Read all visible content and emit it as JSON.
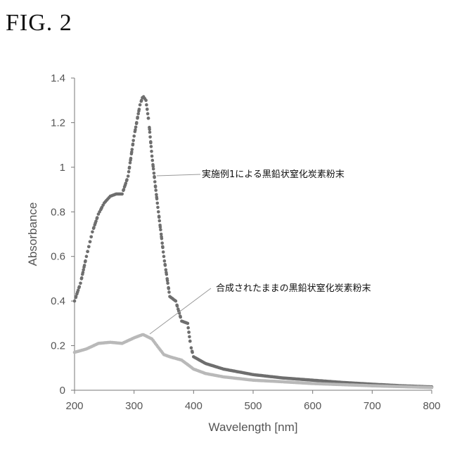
{
  "figure_title": "FIG. 2",
  "chart_data": {
    "type": "scatter",
    "xlabel": "Wavelength [nm]",
    "ylabel": "Absorbance",
    "xlim": [
      200,
      800
    ],
    "ylim": [
      0,
      1.4
    ],
    "xticks": [
      "200",
      "300",
      "400",
      "500",
      "600",
      "700",
      "800"
    ],
    "yticks": [
      "0",
      "0.2",
      "0.4",
      "0.6",
      "0.8",
      "1",
      "1.2",
      "1.4"
    ],
    "grid": false,
    "legend": "none",
    "series": [
      {
        "color": "#6e6e6e",
        "points": [
          [
            200,
            0.4
          ],
          [
            210,
            0.48
          ],
          [
            220,
            0.6
          ],
          [
            230,
            0.71
          ],
          [
            240,
            0.79
          ],
          [
            250,
            0.84
          ],
          [
            260,
            0.87
          ],
          [
            270,
            0.88
          ],
          [
            280,
            0.88
          ],
          [
            290,
            0.96
          ],
          [
            300,
            1.14
          ],
          [
            310,
            1.28
          ],
          [
            315,
            1.32
          ],
          [
            320,
            1.3
          ],
          [
            325,
            1.2
          ],
          [
            330,
            1.05
          ],
          [
            340,
            0.82
          ],
          [
            350,
            0.6
          ],
          [
            360,
            0.42
          ],
          [
            370,
            0.4
          ],
          [
            380,
            0.31
          ],
          [
            390,
            0.3
          ],
          [
            395,
            0.2
          ],
          [
            400,
            0.15
          ],
          [
            420,
            0.12
          ],
          [
            450,
            0.095
          ],
          [
            500,
            0.07
          ],
          [
            550,
            0.055
          ],
          [
            600,
            0.045
          ],
          [
            650,
            0.035
          ],
          [
            700,
            0.027
          ],
          [
            750,
            0.02
          ],
          [
            800,
            0.015
          ]
        ]
      },
      {
        "color": "#b9b9b9",
        "points": [
          [
            200,
            0.17
          ],
          [
            220,
            0.185
          ],
          [
            240,
            0.21
          ],
          [
            260,
            0.215
          ],
          [
            280,
            0.21
          ],
          [
            300,
            0.235
          ],
          [
            315,
            0.25
          ],
          [
            330,
            0.23
          ],
          [
            340,
            0.195
          ],
          [
            350,
            0.16
          ],
          [
            360,
            0.15
          ],
          [
            380,
            0.135
          ],
          [
            400,
            0.095
          ],
          [
            420,
            0.075
          ],
          [
            450,
            0.06
          ],
          [
            500,
            0.045
          ],
          [
            550,
            0.038
          ],
          [
            600,
            0.03
          ],
          [
            650,
            0.025
          ],
          [
            700,
            0.02
          ],
          [
            750,
            0.016
          ],
          [
            800,
            0.012
          ]
        ]
      }
    ],
    "annotations": [
      {
        "text": "実施例1による黒鉛状窒化炭素粉末",
        "x": 345,
        "y": 0.97,
        "series": 0
      },
      {
        "text": "合成されたままの黒鉛状窒化炭素粉末",
        "x": 332,
        "y": 0.25,
        "series": 1
      }
    ]
  }
}
